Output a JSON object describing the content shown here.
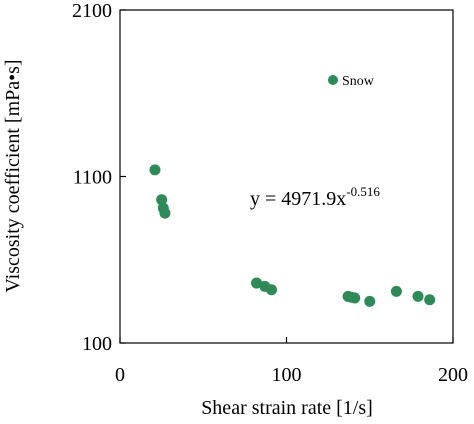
{
  "chart_data": {
    "type": "scatter",
    "xlabel": "Shear strain rate [1/s]",
    "ylabel": "Viscosity coefficient [mPa•s]",
    "xlim": [
      0,
      200
    ],
    "ylim": [
      100,
      2100
    ],
    "x_ticks": [
      "0",
      "100",
      "200"
    ],
    "y_ticks": [
      "100",
      "1100",
      "2100"
    ],
    "grid": false,
    "legend_position": "top-right",
    "series": [
      {
        "name": "Snow",
        "color": "#2e8b57",
        "marker": "circle",
        "points": [
          {
            "x": 21,
            "y": 1140
          },
          {
            "x": 25,
            "y": 960
          },
          {
            "x": 26,
            "y": 910
          },
          {
            "x": 27,
            "y": 880
          },
          {
            "x": 82,
            "y": 460
          },
          {
            "x": 87,
            "y": 440
          },
          {
            "x": 91,
            "y": 420
          },
          {
            "x": 137,
            "y": 380
          },
          {
            "x": 139,
            "y": 375
          },
          {
            "x": 141,
            "y": 370
          },
          {
            "x": 150,
            "y": 350
          },
          {
            "x": 166,
            "y": 410
          },
          {
            "x": 179,
            "y": 380
          },
          {
            "x": 186,
            "y": 360
          }
        ]
      }
    ],
    "trendline": {
      "type": "power",
      "coefficient": 4971.9,
      "exponent": -0.516,
      "x_range": [
        22,
        186
      ],
      "color": "#333333",
      "equation_text": "y = 4971.9x",
      "exponent_text": "-0.516"
    }
  }
}
